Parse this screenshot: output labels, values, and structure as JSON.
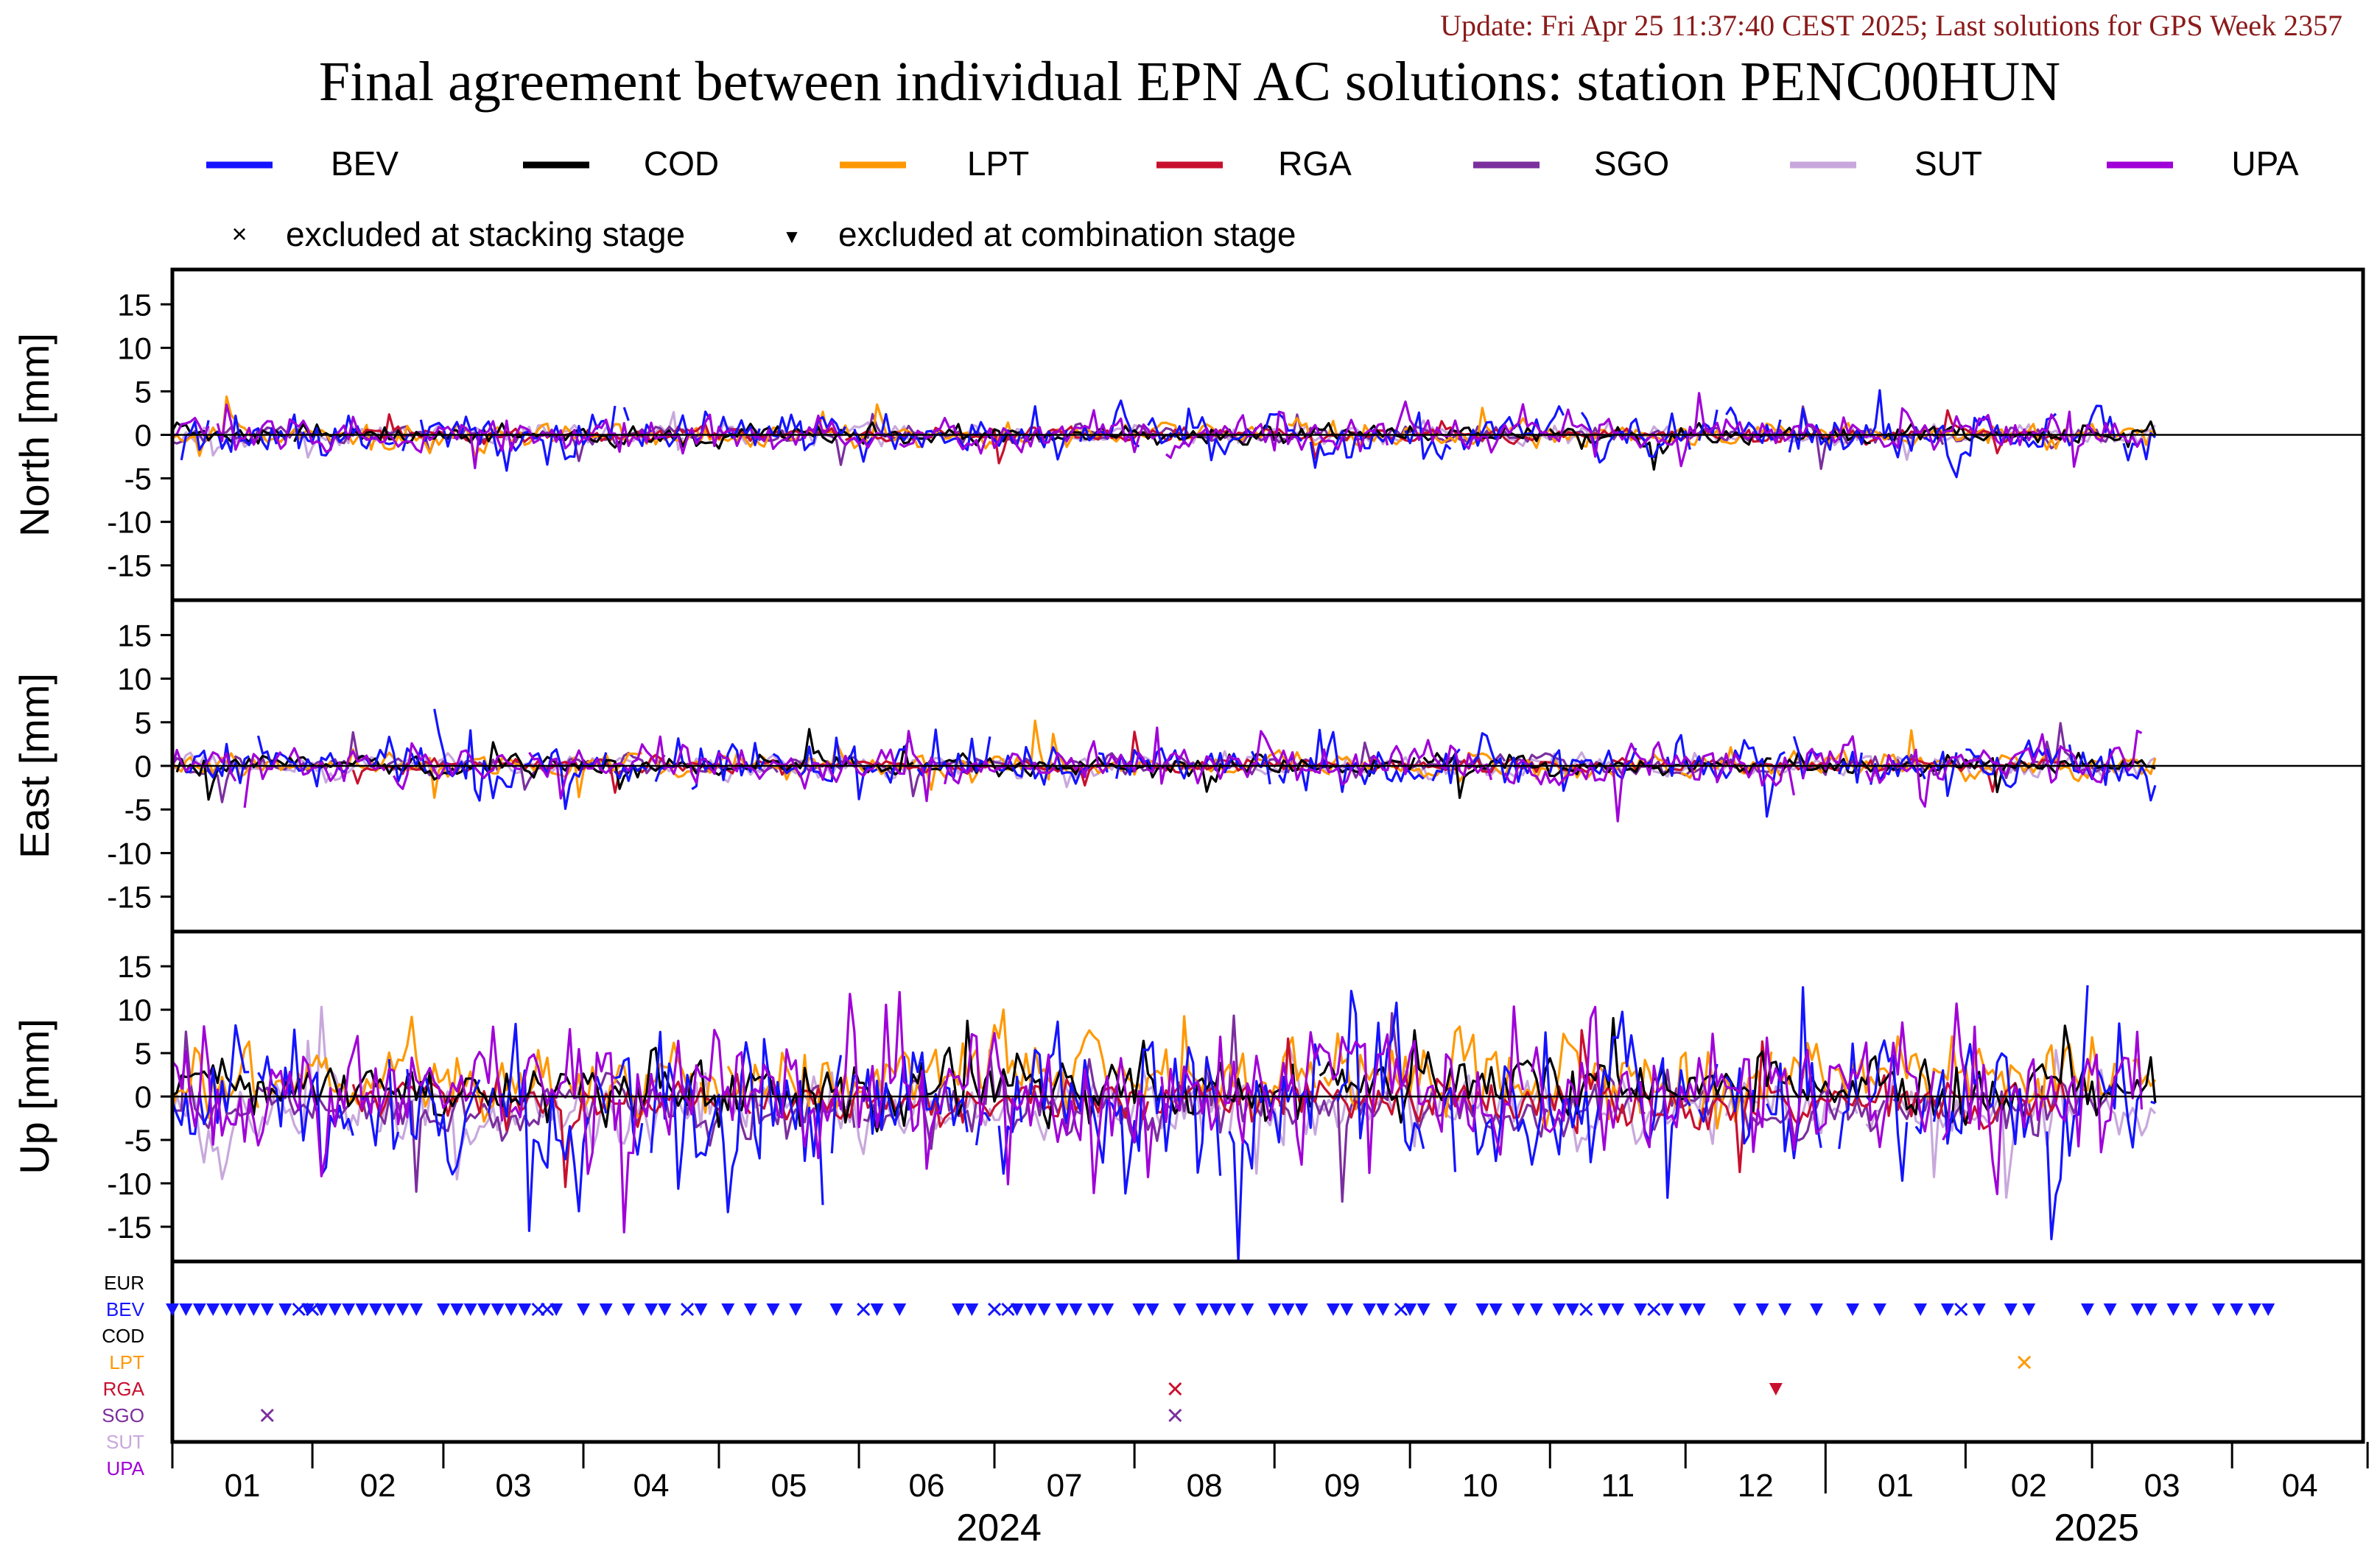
{
  "update_text": "Update: Fri Apr 25 11:37:40 CEST 2025; Last solutions for GPS Week 2357",
  "chart_data": {
    "type": "line",
    "title": "Final agreement between individual EPN AC solutions: station PENC00HUN",
    "colors": {
      "BEV": "#1414ff",
      "COD": "#000000",
      "LPT": "#ff9800",
      "RGA": "#c8102e",
      "SGO": "#7b2f9e",
      "SUT": "#c8a8dc",
      "UPA": "#a000d8",
      "update": "#8b1a1a"
    },
    "legend": {
      "series": [
        "BEV",
        "COD",
        "LPT",
        "RGA",
        "SGO",
        "SUT",
        "UPA"
      ],
      "markers": [
        {
          "symbol": "×",
          "label": "excluded at stacking stage"
        },
        {
          "symbol": "▼",
          "label": "excluded at combination stage"
        }
      ],
      "placement": "top"
    },
    "x": {
      "start": "2024-01-01",
      "end": "2025-04-30",
      "month_ticks": [
        "01",
        "02",
        "03",
        "04",
        "05",
        "06",
        "07",
        "08",
        "09",
        "10",
        "11",
        "12",
        "01",
        "02",
        "03",
        "04"
      ],
      "year_labels": [
        "2024",
        "2025"
      ]
    },
    "panels": [
      {
        "ylabel": "North [mm]",
        "ylim": [
          -19,
          19
        ],
        "yticks": [
          15,
          10,
          5,
          0,
          -5,
          -10,
          -15
        ],
        "amp_mm": 1.2,
        "spike_mm": 3.5
      },
      {
        "ylabel": "East [mm]",
        "ylim": [
          -19,
          19
        ],
        "yticks": [
          15,
          10,
          5,
          0,
          -5,
          -10,
          -15
        ],
        "amp_mm": 1.3,
        "spike_mm": 4.2
      },
      {
        "ylabel": "Up [mm]",
        "ylim": [
          -19,
          19
        ],
        "yticks": [
          15,
          10,
          5,
          0,
          -5,
          -10,
          -15
        ],
        "amp_mm": 4.0,
        "spike_mm": 10.5
      }
    ],
    "series_offsets_up": {
      "BEV": -1.0,
      "COD": 1.0,
      "LPT": 2.0,
      "RGA": -0.5,
      "SGO": -1.5,
      "SUT": -1.5,
      "UPA": 0.5
    },
    "exclusion_rows": [
      "EUR",
      "BEV",
      "COD",
      "LPT",
      "RGA",
      "SGO",
      "SUT",
      "UPA"
    ],
    "exclusions": {
      "BEV": {
        "combination": [
          "2024-01-01",
          "2024-01-04",
          "2024-01-07",
          "2024-01-10",
          "2024-01-13",
          "2024-01-16",
          "2024-01-19",
          "2024-01-22",
          "2024-01-26",
          "2024-01-31",
          "2024-02-03",
          "2024-02-06",
          "2024-02-09",
          "2024-02-12",
          "2024-02-15",
          "2024-02-18",
          "2024-02-21",
          "2024-02-24",
          "2024-03-01",
          "2024-03-04",
          "2024-03-07",
          "2024-03-10",
          "2024-03-13",
          "2024-03-16",
          "2024-03-19",
          "2024-03-26",
          "2024-04-01",
          "2024-04-06",
          "2024-04-11",
          "2024-04-16",
          "2024-04-19",
          "2024-04-27",
          "2024-05-03",
          "2024-05-08",
          "2024-05-13",
          "2024-05-18",
          "2024-05-27",
          "2024-06-05",
          "2024-06-10",
          "2024-06-23",
          "2024-06-26",
          "2024-07-06",
          "2024-07-09",
          "2024-07-12",
          "2024-07-16",
          "2024-07-19",
          "2024-07-23",
          "2024-07-26",
          "2024-08-02",
          "2024-08-05",
          "2024-08-11",
          "2024-08-16",
          "2024-08-19",
          "2024-08-22",
          "2024-08-26",
          "2024-09-01",
          "2024-09-04",
          "2024-09-07",
          "2024-09-14",
          "2024-09-17",
          "2024-09-22",
          "2024-09-25",
          "2024-10-01",
          "2024-10-04",
          "2024-10-10",
          "2024-10-17",
          "2024-10-20",
          "2024-10-25",
          "2024-10-29",
          "2024-11-03",
          "2024-11-06",
          "2024-11-13",
          "2024-11-16",
          "2024-11-21",
          "2024-11-27",
          "2024-12-01",
          "2024-12-04",
          "2024-12-13",
          "2024-12-18",
          "2024-12-23",
          "2024-12-30",
          "2025-01-07",
          "2025-01-13",
          "2025-01-22",
          "2025-01-28",
          "2025-02-04",
          "2025-02-11",
          "2025-02-15",
          "2025-02-28",
          "2025-03-05",
          "2025-03-11",
          "2025-03-14",
          "2025-03-19",
          "2025-03-23",
          "2025-03-29",
          "2025-04-02",
          "2025-04-06",
          "2025-04-09"
        ],
        "stacking": [
          "2024-01-29",
          "2024-02-01",
          "2024-03-22",
          "2024-03-24",
          "2024-04-24",
          "2024-06-02",
          "2024-07-01",
          "2024-07-04",
          "2024-09-29",
          "2024-11-09",
          "2024-11-24",
          "2025-01-31"
        ]
      },
      "LPT": {
        "combination": [],
        "stacking": [
          "2025-02-14"
        ]
      },
      "RGA": {
        "combination": [
          "2024-12-21"
        ],
        "stacking": [
          "2024-08-10"
        ]
      },
      "SGO": {
        "combination": [],
        "stacking": [
          "2024-01-22",
          "2024-08-10"
        ]
      },
      "SUT": {
        "combination": [],
        "stacking": []
      },
      "UPA": {
        "combination": [],
        "stacking": []
      }
    }
  }
}
